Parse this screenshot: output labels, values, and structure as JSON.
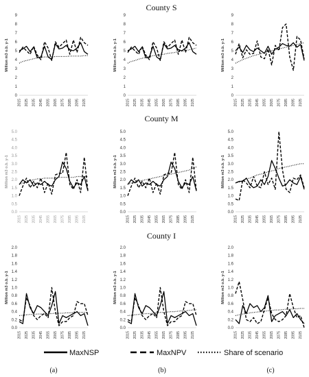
{
  "titles": {
    "S": "County S",
    "M": "County M",
    "I": "County I"
  },
  "ylabel": "Million m3 o.b. y-1",
  "panel_labels": [
    "(a)",
    "(b)",
    "(c)"
  ],
  "legend": [
    {
      "key": "maxnsp",
      "label": "MaxNSP",
      "style": "solid"
    },
    {
      "key": "maxnpv",
      "label": "MaxNPV",
      "style": "dashed"
    },
    {
      "key": "share",
      "label": "Share of scenario",
      "style": "dotted"
    }
  ],
  "chart_data": [
    {
      "id": "S-a",
      "type": "line",
      "title": "County S",
      "panel": "(a)",
      "ylim": [
        0,
        9
      ],
      "yticks": [
        0,
        1,
        2,
        3,
        4,
        5,
        6,
        7,
        8,
        9
      ],
      "xticks": [
        "2015",
        "2025",
        "2035",
        "2045",
        "2055",
        "2065",
        "2075",
        "2085",
        "2095",
        "2105"
      ],
      "x": [
        2015,
        2020,
        2025,
        2030,
        2035,
        2040,
        2045,
        2050,
        2055,
        2060,
        2065,
        2070,
        2075,
        2080,
        2085,
        2090,
        2095,
        2100,
        2105,
        2110
      ],
      "series": [
        {
          "name": "MaxNSP",
          "values": [
            5.0,
            5.2,
            5.5,
            4.9,
            5.4,
            4.2,
            4.3,
            5.5,
            4.3,
            4.0,
            5.8,
            5.2,
            5.3,
            5.6,
            5.1,
            5.0,
            5.3,
            5.9,
            4.9,
            4.6
          ]
        },
        {
          "name": "MaxNPV",
          "values": [
            4.8,
            5.4,
            5.0,
            4.6,
            5.5,
            4.5,
            4.0,
            6.0,
            5.3,
            3.9,
            6.0,
            5.4,
            5.8,
            6.2,
            4.6,
            6.2,
            4.8,
            6.5,
            5.9,
            5.6
          ]
        },
        {
          "name": "Share of scenario",
          "values": [
            3.6,
            3.8,
            3.9,
            4.0,
            4.1,
            4.2,
            4.25,
            4.3,
            4.3,
            4.3,
            4.35,
            4.35,
            4.35,
            4.35,
            4.4,
            4.4,
            4.4,
            4.4,
            4.45,
            4.45
          ]
        }
      ]
    },
    {
      "id": "S-b",
      "type": "line",
      "title": "County S",
      "panel": "(b)",
      "ylim": [
        0,
        9
      ],
      "yticks": [
        0,
        1,
        2,
        3,
        4,
        5,
        6,
        7,
        8,
        9
      ],
      "xticks": [
        "2015",
        "2025",
        "2035",
        "2045",
        "2055",
        "2065",
        "2075",
        "2085",
        "2095",
        "2105"
      ],
      "x": [
        2015,
        2020,
        2025,
        2030,
        2035,
        2040,
        2045,
        2050,
        2055,
        2060,
        2065,
        2070,
        2075,
        2080,
        2085,
        2090,
        2095,
        2100,
        2105,
        2110
      ],
      "series": [
        {
          "name": "MaxNSP",
          "values": [
            5.0,
            5.2,
            5.5,
            4.9,
            5.4,
            4.2,
            4.3,
            5.5,
            4.3,
            4.0,
            5.8,
            5.2,
            5.3,
            5.6,
            5.1,
            5.0,
            5.3,
            5.9,
            4.9,
            4.6
          ]
        },
        {
          "name": "MaxNPV",
          "values": [
            4.8,
            5.4,
            5.0,
            4.6,
            5.5,
            4.5,
            4.0,
            6.0,
            5.3,
            3.9,
            6.0,
            5.4,
            5.8,
            6.2,
            4.6,
            6.2,
            4.8,
            6.5,
            5.9,
            5.6
          ]
        },
        {
          "name": "Share of scenario",
          "values": [
            3.6,
            3.8,
            3.9,
            4.05,
            4.15,
            4.25,
            4.35,
            4.45,
            4.5,
            4.55,
            4.6,
            4.7,
            4.75,
            4.8,
            4.9,
            4.95,
            5.0,
            5.1,
            5.2,
            5.3
          ]
        }
      ]
    },
    {
      "id": "S-c",
      "type": "line",
      "title": "County S",
      "panel": "(c)",
      "ylim": [
        0,
        9
      ],
      "yticks": [
        0,
        1,
        2,
        3,
        4,
        5,
        6,
        7,
        8,
        9
      ],
      "xticks": [
        "2015",
        "2025",
        "2035",
        "2045",
        "2055",
        "2065",
        "2075",
        "2085",
        "2095",
        "2105"
      ],
      "x": [
        2015,
        2020,
        2025,
        2030,
        2035,
        2040,
        2045,
        2050,
        2055,
        2060,
        2065,
        2070,
        2075,
        2080,
        2085,
        2090,
        2095,
        2100,
        2105,
        2110
      ],
      "series": [
        {
          "name": "MaxNSP",
          "values": [
            5.0,
            5.4,
            4.8,
            5.6,
            5.1,
            4.9,
            5.3,
            5.0,
            4.7,
            5.5,
            4.6,
            5.2,
            5.4,
            5.8,
            5.6,
            5.5,
            5.9,
            5.4,
            5.7,
            3.9
          ]
        },
        {
          "name": "MaxNPV",
          "values": [
            4.6,
            5.8,
            4.2,
            5.1,
            4.6,
            4.7,
            6.1,
            4.3,
            4.1,
            5.2,
            3.4,
            5.6,
            5.0,
            7.6,
            8.0,
            4.3,
            2.8,
            6.6,
            6.2,
            4.1
          ]
        },
        {
          "name": "Share of scenario",
          "values": [
            3.6,
            3.8,
            4.0,
            4.15,
            4.3,
            4.45,
            4.55,
            4.65,
            4.8,
            4.9,
            5.0,
            5.1,
            5.2,
            5.3,
            5.4,
            5.5,
            5.6,
            5.7,
            5.8,
            5.9
          ]
        }
      ]
    },
    {
      "id": "M-a",
      "type": "line",
      "title": "County M",
      "panel": "(a)",
      "ylim": [
        0,
        5
      ],
      "yticks": [
        0,
        0.5,
        1.0,
        1.5,
        2.0,
        2.5,
        3.0,
        3.5,
        4.0,
        4.5,
        5.0
      ],
      "xticks": [
        "2015",
        "2025",
        "2035",
        "2045",
        "2055",
        "2065",
        "2075",
        "2085",
        "2095",
        "2105"
      ],
      "x": [
        2015,
        2020,
        2025,
        2030,
        2035,
        2040,
        2045,
        2050,
        2055,
        2060,
        2065,
        2070,
        2075,
        2080,
        2085,
        2090,
        2095,
        2100,
        2105,
        2110
      ],
      "series": [
        {
          "name": "MaxNSP",
          "values": [
            1.7,
            2.0,
            1.8,
            2.0,
            1.6,
            1.8,
            1.7,
            1.9,
            1.7,
            1.6,
            2.0,
            2.2,
            3.1,
            2.7,
            1.9,
            1.5,
            1.8,
            1.7,
            2.2,
            1.3
          ]
        },
        {
          "name": "MaxNPV",
          "values": [
            1.0,
            1.6,
            2.1,
            1.5,
            1.9,
            1.5,
            2.1,
            1.2,
            1.8,
            1.1,
            2.3,
            2.4,
            2.4,
            3.7,
            1.7,
            1.4,
            2.0,
            1.2,
            3.4,
            1.3
          ]
        },
        {
          "name": "Share of scenario",
          "values": [
            1.7,
            1.8,
            1.9,
            1.95,
            2.0,
            2.05,
            2.05,
            2.1,
            2.1,
            2.1,
            2.1,
            2.15,
            2.15,
            2.15,
            2.15,
            2.15,
            2.2,
            2.2,
            2.2,
            2.2
          ]
        }
      ]
    },
    {
      "id": "M-b",
      "type": "line",
      "title": "County M",
      "panel": "(b)",
      "ylim": [
        0,
        5
      ],
      "yticks": [
        0,
        0.5,
        1.0,
        1.5,
        2.0,
        2.5,
        3.0,
        3.5,
        4.0,
        4.5,
        5.0
      ],
      "xticks": [
        "2015",
        "2025",
        "2035",
        "2045",
        "2055",
        "2065",
        "2075",
        "2085",
        "2095",
        "2105"
      ],
      "x": [
        2015,
        2020,
        2025,
        2030,
        2035,
        2040,
        2045,
        2050,
        2055,
        2060,
        2065,
        2070,
        2075,
        2080,
        2085,
        2090,
        2095,
        2100,
        2105,
        2110
      ],
      "series": [
        {
          "name": "MaxNSP",
          "values": [
            1.7,
            2.0,
            1.8,
            2.0,
            1.6,
            1.8,
            1.7,
            1.9,
            1.7,
            1.6,
            2.0,
            2.2,
            3.1,
            2.7,
            1.9,
            1.5,
            1.8,
            1.7,
            2.2,
            1.3
          ]
        },
        {
          "name": "MaxNPV",
          "values": [
            1.0,
            1.6,
            2.1,
            1.5,
            1.9,
            1.5,
            2.1,
            1.2,
            1.8,
            1.1,
            2.3,
            2.4,
            2.4,
            3.7,
            1.7,
            1.4,
            2.0,
            1.2,
            3.4,
            1.3
          ]
        },
        {
          "name": "Share of scenario",
          "values": [
            1.7,
            1.8,
            1.85,
            1.9,
            1.95,
            2.0,
            2.05,
            2.1,
            2.15,
            2.2,
            2.25,
            2.3,
            2.35,
            2.4,
            2.45,
            2.5,
            2.55,
            2.6,
            2.7,
            2.8
          ]
        }
      ]
    },
    {
      "id": "M-c",
      "type": "line",
      "title": "County M",
      "panel": "(c)",
      "ylim": [
        0,
        5
      ],
      "yticks": [
        0,
        0.5,
        1.0,
        1.5,
        2.0,
        2.5,
        3.0,
        3.5,
        4.0,
        4.5,
        5.0
      ],
      "xticks": [
        "2015",
        "2025",
        "2035",
        "2045",
        "2055",
        "2065",
        "2075",
        "2085",
        "2095",
        "2105"
      ],
      "x": [
        2015,
        2020,
        2025,
        2030,
        2035,
        2040,
        2045,
        2050,
        2055,
        2060,
        2065,
        2070,
        2075,
        2080,
        2085,
        2090,
        2095,
        2100,
        2105,
        2110
      ],
      "series": [
        {
          "name": "MaxNSP",
          "values": [
            1.8,
            1.9,
            1.9,
            2.1,
            1.7,
            1.5,
            1.6,
            2.0,
            1.7,
            2.2,
            3.2,
            2.7,
            2.1,
            1.6,
            1.7,
            2.0,
            1.8,
            1.7,
            2.2,
            1.4
          ]
        },
        {
          "name": "MaxNPV",
          "values": [
            0.8,
            0.7,
            2.0,
            1.8,
            1.5,
            2.2,
            1.6,
            1.5,
            2.5,
            1.7,
            2.1,
            1.4,
            5.0,
            2.6,
            1.4,
            1.2,
            2.1,
            2.0,
            2.3,
            1.5
          ]
        },
        {
          "name": "Share of scenario",
          "values": [
            1.8,
            1.85,
            1.95,
            2.05,
            2.1,
            2.2,
            2.3,
            2.35,
            2.4,
            2.5,
            2.55,
            2.6,
            2.7,
            2.75,
            2.8,
            2.85,
            2.9,
            2.95,
            3.0,
            3.0
          ]
        }
      ]
    },
    {
      "id": "I-a",
      "type": "line",
      "title": "County I",
      "panel": "(a)",
      "ylim": [
        0,
        2
      ],
      "yticks": [
        0,
        0.2,
        0.4,
        0.6,
        0.8,
        1.0,
        1.2,
        1.4,
        1.6,
        1.8,
        2.0
      ],
      "xticks": [
        "2015",
        "2025",
        "2035",
        "2045",
        "2055",
        "2065",
        "2075",
        "2085",
        "2095",
        "2105"
      ],
      "x": [
        2015,
        2020,
        2025,
        2030,
        2035,
        2040,
        2045,
        2050,
        2055,
        2060,
        2065,
        2070,
        2075,
        2080,
        2085,
        2090,
        2095,
        2100,
        2105,
        2110
      ],
      "series": [
        {
          "name": "MaxNSP",
          "values": [
            0.15,
            0.1,
            0.85,
            0.5,
            0.35,
            0.55,
            0.5,
            0.4,
            0.3,
            0.55,
            0.9,
            0.1,
            0.3,
            0.25,
            0.3,
            0.35,
            0.4,
            0.3,
            0.35,
            0.05
          ]
        },
        {
          "name": "MaxNPV",
          "values": [
            0.2,
            0.15,
            0.75,
            0.55,
            0.3,
            0.2,
            0.3,
            0.35,
            0.25,
            1.0,
            0.4,
            0.05,
            0.15,
            0.15,
            0.25,
            0.3,
            0.65,
            0.6,
            0.6,
            0.3
          ]
        },
        {
          "name": "Share of scenario",
          "values": [
            0.3,
            0.31,
            0.32,
            0.33,
            0.33,
            0.34,
            0.34,
            0.35,
            0.35,
            0.35,
            0.36,
            0.36,
            0.36,
            0.37,
            0.37,
            0.37,
            0.38,
            0.38,
            0.38,
            0.38
          ]
        }
      ]
    },
    {
      "id": "I-b",
      "type": "line",
      "title": "County I",
      "panel": "(b)",
      "ylim": [
        0,
        2
      ],
      "yticks": [
        0,
        0.2,
        0.4,
        0.6,
        0.8,
        1.0,
        1.2,
        1.4,
        1.6,
        1.8,
        2.0
      ],
      "xticks": [
        "2015",
        "2025",
        "2035",
        "2045",
        "2055",
        "2065",
        "2075",
        "2085",
        "2095",
        "2105"
      ],
      "x": [
        2015,
        2020,
        2025,
        2030,
        2035,
        2040,
        2045,
        2050,
        2055,
        2060,
        2065,
        2070,
        2075,
        2080,
        2085,
        2090,
        2095,
        2100,
        2105,
        2110
      ],
      "series": [
        {
          "name": "MaxNSP",
          "values": [
            0.15,
            0.1,
            0.85,
            0.5,
            0.35,
            0.55,
            0.5,
            0.4,
            0.3,
            0.55,
            0.9,
            0.1,
            0.3,
            0.25,
            0.3,
            0.35,
            0.4,
            0.3,
            0.35,
            0.05
          ]
        },
        {
          "name": "MaxNPV",
          "values": [
            0.2,
            0.15,
            0.75,
            0.55,
            0.3,
            0.2,
            0.3,
            0.35,
            0.25,
            1.0,
            0.4,
            0.05,
            0.15,
            0.15,
            0.25,
            0.3,
            0.65,
            0.6,
            0.6,
            0.3
          ]
        },
        {
          "name": "Share of scenario",
          "values": [
            0.3,
            0.31,
            0.32,
            0.33,
            0.34,
            0.35,
            0.35,
            0.36,
            0.37,
            0.38,
            0.38,
            0.39,
            0.4,
            0.4,
            0.41,
            0.42,
            0.42,
            0.43,
            0.44,
            0.45
          ]
        }
      ]
    },
    {
      "id": "I-c",
      "type": "line",
      "title": "County I",
      "panel": "(c)",
      "ylim": [
        0,
        2
      ],
      "yticks": [
        0,
        0.2,
        0.4,
        0.6,
        0.8,
        1.0,
        1.2,
        1.4,
        1.6,
        1.8,
        2.0
      ],
      "xticks": [
        "2015",
        "2025",
        "2035",
        "2045",
        "2055",
        "2065",
        "2075",
        "2085",
        "2095",
        "2105"
      ],
      "x": [
        2015,
        2020,
        2025,
        2030,
        2035,
        2040,
        2045,
        2050,
        2055,
        2060,
        2065,
        2070,
        2075,
        2080,
        2085,
        2090,
        2095,
        2100,
        2105,
        2110
      ],
      "series": [
        {
          "name": "MaxNSP",
          "values": [
            0.2,
            0.1,
            0.55,
            0.35,
            0.6,
            0.5,
            0.55,
            0.4,
            0.5,
            0.8,
            0.15,
            0.3,
            0.35,
            0.4,
            0.3,
            0.45,
            0.25,
            0.35,
            0.2,
            0.1
          ]
        },
        {
          "name": "MaxNPV",
          "values": [
            0.85,
            1.15,
            0.7,
            0.2,
            0.15,
            0.25,
            0.1,
            0.15,
            0.45,
            0.75,
            0.35,
            0.2,
            0.15,
            0.2,
            0.3,
            0.85,
            0.5,
            0.25,
            0.3,
            0.0
          ]
        },
        {
          "name": "Share of scenario",
          "values": [
            0.3,
            0.32,
            0.34,
            0.35,
            0.37,
            0.38,
            0.39,
            0.4,
            0.41,
            0.42,
            0.43,
            0.44,
            0.44,
            0.45,
            0.46,
            0.46,
            0.47,
            0.47,
            0.48,
            0.48
          ]
        }
      ]
    }
  ]
}
